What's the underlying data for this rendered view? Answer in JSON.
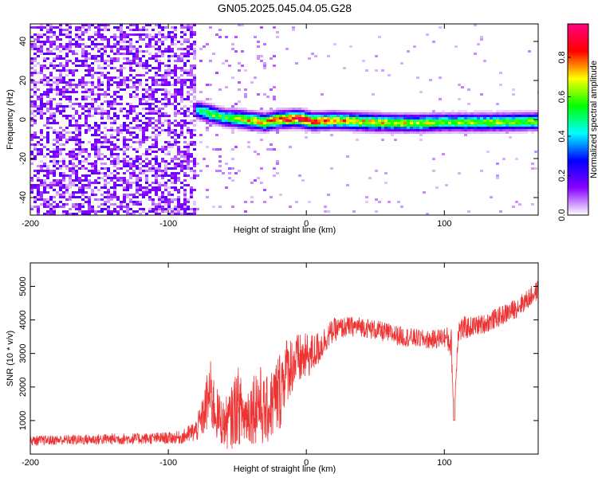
{
  "figure": {
    "title": "GN05.2025.045.04.05.G28"
  },
  "chart_data": [
    {
      "type": "heatmap",
      "xlabel": "Height of straight line (km)",
      "ylabel": "Frequency (Hz)",
      "xlim": [
        -200,
        168
      ],
      "ylim": [
        -49,
        49
      ],
      "x_ticks": [
        -200,
        -100,
        0,
        100
      ],
      "y_ticks": [
        -40,
        -20,
        0,
        20,
        40
      ],
      "colorbar": {
        "label": "Normalized spectral amplitude",
        "range": [
          0.0,
          0.97
        ],
        "ticks": [
          0.0,
          0.2,
          0.4,
          0.6,
          0.8
        ],
        "colormap": "rainbow",
        "colors": [
          "#ffffff",
          "#8800ff",
          "#0000ff",
          "#00ffff",
          "#00ff00",
          "#ffff00",
          "#ff0000",
          "#ff0080"
        ]
      },
      "features": {
        "noise_region_x": [
          -200,
          -80
        ],
        "scatter_region_x": [
          -80,
          -20
        ],
        "ridge": [
          {
            "x": -80,
            "freq": 5,
            "amp": 0.45
          },
          {
            "x": -70,
            "freq": 3,
            "amp": 0.6
          },
          {
            "x": -60,
            "freq": 1,
            "amp": 0.55
          },
          {
            "x": -45,
            "freq": 0,
            "amp": 0.7
          },
          {
            "x": -30,
            "freq": -1.5,
            "amp": 0.75
          },
          {
            "x": -20,
            "freq": 0,
            "amp": 0.8
          },
          {
            "x": -5,
            "freq": 0.5,
            "amp": 0.92
          },
          {
            "x": 5,
            "freq": -1,
            "amp": 0.85
          },
          {
            "x": 20,
            "freq": -0.5,
            "amp": 0.75
          },
          {
            "x": 50,
            "freq": -1.5,
            "amp": 0.7
          },
          {
            "x": 80,
            "freq": -2,
            "amp": 0.65
          },
          {
            "x": 100,
            "freq": -1.5,
            "amp": 0.6
          },
          {
            "x": 130,
            "freq": -1.5,
            "amp": 0.62
          },
          {
            "x": 168,
            "freq": -1,
            "amp": 0.6
          }
        ]
      },
      "grid": false,
      "legend": "none"
    },
    {
      "type": "line",
      "xlabel": "Height of straight line (km)",
      "ylabel": "SNR (10 * v/v)",
      "xlim": [
        -200,
        168
      ],
      "ylim": [
        0,
        5700
      ],
      "x_ticks": [
        -200,
        -100,
        0,
        100
      ],
      "y_ticks": [
        1000,
        2000,
        3000,
        4000,
        5000
      ],
      "series": [
        {
          "color": "#ee3333",
          "x": [
            -200,
            -180,
            -160,
            -140,
            -120,
            -100,
            -90,
            -80,
            -75,
            -70,
            -65,
            -60,
            -55,
            -50,
            -45,
            -40,
            -35,
            -30,
            -25,
            -20,
            -15,
            -10,
            -5,
            0,
            5,
            10,
            15,
            20,
            30,
            40,
            50,
            60,
            70,
            80,
            90,
            100,
            105,
            107,
            110,
            120,
            130,
            140,
            150,
            160,
            168
          ],
          "y": [
            400,
            420,
            430,
            450,
            460,
            480,
            500,
            700,
            1100,
            1800,
            1200,
            900,
            1000,
            1500,
            1100,
            1300,
            1600,
            1200,
            1500,
            1800,
            2500,
            2700,
            2800,
            2900,
            3000,
            3200,
            3500,
            3700,
            3800,
            3800,
            3700,
            3600,
            3500,
            3450,
            3400,
            3500,
            3300,
            1000,
            3700,
            3800,
            3900,
            4100,
            4300,
            4600,
            4900
          ],
          "noise_amplitude": [
            150,
            150,
            160,
            170,
            170,
            180,
            200,
            350,
            600,
            1100,
            800,
            700,
            900,
            1200,
            900,
            1000,
            1300,
            1000,
            1100,
            1300,
            1000,
            900,
            800,
            700,
            600,
            500,
            400,
            350,
            300,
            300,
            300,
            300,
            300,
            280,
            280,
            300,
            500,
            0,
            400,
            300,
            300,
            300,
            300,
            300,
            300
          ]
        }
      ],
      "grid": false,
      "legend": "none"
    }
  ]
}
